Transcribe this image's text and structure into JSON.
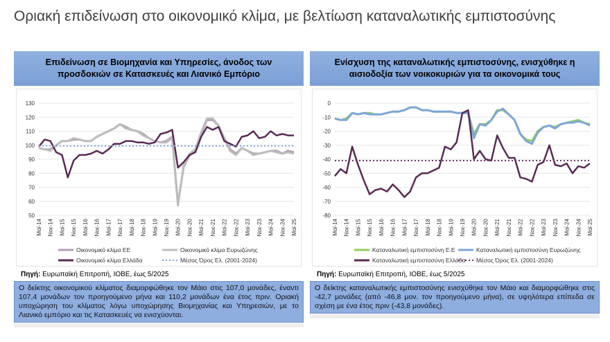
{
  "page_title": "Οριακή επιδείνωση στο οικονομικό κλίμα, με βελτίωση καταναλωτικής εμπιστοσύνης",
  "left": {
    "header": "Επιδείνωση σε Βιομηχανία και Υπηρεσίες, άνοδος των προσδοκιών σε Κατασκευές και Λιανικό Εμπόριο",
    "source_label": "Πηγή:",
    "source_text": " Ευρωπαϊκή Επιτροπή, ΙΟΒΕ, έως 5/2025",
    "note": "Ο δείκτης οικονομικού κλίματος διαμορφώθηκε τον Μάιο στις 107,0 μονάδες, έναντι 107,4 μονάδων τον προηγούμενο μήνα και 110,2 μονάδων ένα έτος πριν. Οριακή υποχώρηση του κλίματος λόγω υποχώρησης Βιομηχανίας και Υπηρεσιών, με το Λιανικό εμπόριο και τις Κατασκευές να ενισχύονται."
  },
  "right": {
    "header": "Ενίσχυση της καταναλωτικής εμπιστοσύνης, ενισχύθηκε η αισιοδοξία των νοικοκυριών για τα οικονομικά τους",
    "source_label": "Πηγή:",
    "source_text": " Ευρωπαϊκή Επιτροπή, ΙΟΒΕ, έως 5/2025",
    "note": "Ο δείκτης καταναλωτικής εμπιστοσύνης ενισχύθηκε τον Μάιο και διαμορφώθηκε στις -42,7 μονάδες (από -46,8 μον. τον προηγούμενο μήνα), σε υψηλότερα επίπεδα σε σχέση με ένα έτος πριν (-43,8 μονάδες)."
  },
  "chart_data": [
    {
      "type": "line",
      "ylim": [
        50,
        130
      ],
      "yticks": [
        50,
        60,
        70,
        80,
        90,
        100,
        110,
        120,
        130
      ],
      "grid": true,
      "legend": "bottom",
      "xtick_labels": [
        "Μαϊ-14",
        "Νοε-14",
        "Μαϊ-15",
        "Νοε-15",
        "Μαϊ-16",
        "Νοε-16",
        "Μαϊ-17",
        "Νοε-17",
        "Μαϊ-18",
        "Νοε-18",
        "Μαϊ-19",
        "Νοε-19",
        "Μαϊ-20",
        "Νοε-20",
        "Μαϊ-21",
        "Νοε-21",
        "Μαϊ-22",
        "Νοε-22",
        "Μαϊ-23",
        "Νοε-23",
        "Μαϊ-24",
        "Νοε-24",
        "Μαϊ-25"
      ],
      "series": [
        {
          "name": "Οικονομικό κλίμα ΕΕ",
          "color": "#b39bb5",
          "values": [
            98,
            97,
            97,
            100,
            103,
            103,
            104,
            104,
            103,
            103,
            106,
            108,
            110,
            112,
            115,
            113,
            111,
            110,
            108,
            105,
            103,
            102,
            103,
            106,
            58,
            85,
            93,
            96,
            108,
            118,
            118,
            114,
            105,
            97,
            94,
            98,
            96,
            94,
            94,
            95,
            96,
            96,
            94,
            96,
            95
          ]
        },
        {
          "name": "Οικονομικό κλίμα Ευρωζώνης",
          "color": "#bdbdbd",
          "values": [
            98,
            97,
            96,
            100,
            103,
            103,
            105,
            104,
            103,
            103,
            106,
            108,
            110,
            112,
            115,
            112,
            111,
            110,
            107,
            105,
            103,
            102,
            102,
            105,
            57,
            86,
            94,
            97,
            109,
            119,
            119,
            114,
            105,
            96,
            93,
            98,
            96,
            93,
            94,
            95,
            96,
            95,
            94,
            95,
            94
          ]
        },
        {
          "name": "Οικονομικό κλίμα Ελλάδα",
          "color": "#5a2a55",
          "values": [
            99,
            104,
            103,
            95,
            93,
            77,
            89,
            93,
            93,
            94,
            96,
            94,
            97,
            101,
            101,
            103,
            103,
            102,
            102,
            101,
            102,
            108,
            109,
            111,
            84,
            88,
            93,
            95,
            106,
            113,
            111,
            113,
            103,
            101,
            99,
            106,
            107,
            110,
            105,
            106,
            110,
            107,
            108,
            107,
            107
          ]
        },
        {
          "name": "Μέσος Όρος Ελ. (2001-2024)",
          "color": "#7ea3dc",
          "dotted": true,
          "value": 99.5
        }
      ]
    },
    {
      "type": "line",
      "ylim": [
        -80,
        0
      ],
      "yticks": [
        -80,
        -70,
        -60,
        -50,
        -40,
        -30,
        -20,
        -10,
        0
      ],
      "grid": true,
      "legend": "bottom",
      "xtick_labels": [
        "Μαϊ-14",
        "Νοε-14",
        "Μαϊ-15",
        "Νοε-15",
        "Μαϊ-16",
        "Νοε-16",
        "Μαϊ-17",
        "Νοε-17",
        "Μαϊ-18",
        "Νοε-18",
        "Μαϊ-19",
        "Νοε-19",
        "Μαϊ-20",
        "Νοε-20",
        "Μαϊ-21",
        "Νοε-21",
        "Μαϊ-22",
        "Νοε-22",
        "Μαϊ-23",
        "Νοε-23",
        "Μαϊ-24",
        "Νοε-24",
        "Μαϊ-25"
      ],
      "series": [
        {
          "name": "Καταναλωτική εμπιστοσύνη Ε.Ε",
          "color": "#8fd05a",
          "values": [
            -11,
            -12,
            -11,
            -7,
            -8,
            -7,
            -7,
            -8,
            -8,
            -7,
            -6,
            -6,
            -5,
            -3,
            -3,
            -5,
            -5,
            -6,
            -6,
            -6,
            -6,
            -7,
            -7,
            -7,
            -22,
            -15,
            -15,
            -12,
            -5,
            -5,
            -8,
            -12,
            -22,
            -26,
            -27,
            -20,
            -17,
            -16,
            -17,
            -15,
            -14,
            -13,
            -12,
            -14,
            -15
          ]
        },
        {
          "name": "Καταναλωτική εμπιστοσύνη Ευρωζώνης",
          "color": "#7ea6dc",
          "values": [
            -11,
            -12,
            -12,
            -7,
            -8,
            -7,
            -8,
            -8,
            -8,
            -7,
            -6,
            -6,
            -5,
            -3,
            -3,
            -5,
            -5,
            -6,
            -6,
            -6,
            -6,
            -7,
            -7,
            -7,
            -25,
            -15,
            -16,
            -12,
            -6,
            -4,
            -8,
            -12,
            -22,
            -27,
            -29,
            -21,
            -17,
            -16,
            -18,
            -15,
            -14,
            -14,
            -13,
            -14,
            -16
          ]
        },
        {
          "name": "Καταναλωτική εμπιστοσύνη Ελλάδα",
          "color": "#5a2a55",
          "values": [
            -52,
            -47,
            -50,
            -31,
            -44,
            -55,
            -65,
            -62,
            -61,
            -63,
            -58,
            -62,
            -67,
            -63,
            -53,
            -50,
            -50,
            -48,
            -46,
            -31,
            -33,
            -28,
            -7,
            -5,
            -40,
            -34,
            -40,
            -41,
            -23,
            -32,
            -39,
            -39,
            -53,
            -54,
            -56,
            -44,
            -42,
            -30,
            -44,
            -45,
            -43,
            -50,
            -45,
            -46,
            -43
          ]
        },
        {
          "name": "Μέσος Όρος Ελ. (2001-2024)",
          "color": "#6b3566",
          "dotted": true,
          "value": -41
        }
      ]
    }
  ]
}
